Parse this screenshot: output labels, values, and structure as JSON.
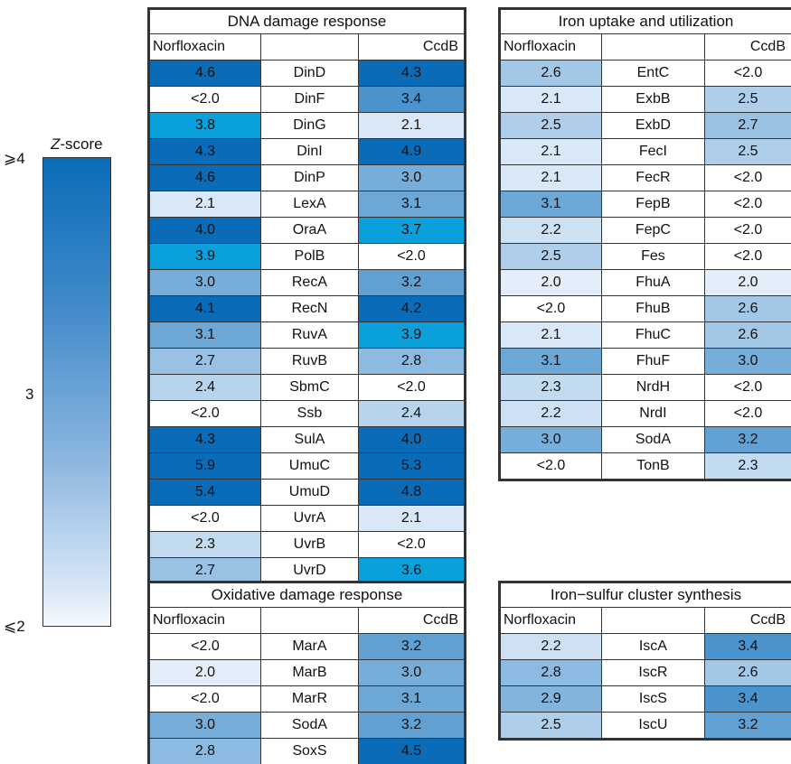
{
  "legend": {
    "title_var": "Z",
    "title_rest": "-score",
    "top_label": "⩾4",
    "mid_label": "3",
    "bottom_label": "⩽2"
  },
  "headers": {
    "left": "Norfloxacin",
    "right": "CcdB"
  },
  "tables": [
    {
      "id": "dna",
      "title": "DNA damage response",
      "rows": [
        [
          "4.6",
          "DinD",
          "4.3"
        ],
        [
          "<2.0",
          "DinF",
          "3.4"
        ],
        [
          "3.8",
          "DinG",
          "2.1"
        ],
        [
          "4.3",
          "DinI",
          "4.9"
        ],
        [
          "4.6",
          "DinP",
          "3.0"
        ],
        [
          "2.1",
          "LexA",
          "3.1"
        ],
        [
          "4.0",
          "OraA",
          "3.7"
        ],
        [
          "3.9",
          "PolB",
          "<2.0"
        ],
        [
          "3.0",
          "RecA",
          "3.2"
        ],
        [
          "4.1",
          "RecN",
          "4.2"
        ],
        [
          "3.1",
          "RuvA",
          "3.9"
        ],
        [
          "2.7",
          "RuvB",
          "2.8"
        ],
        [
          "2.4",
          "SbmC",
          "<2.0"
        ],
        [
          "<2.0",
          "Ssb",
          "2.4"
        ],
        [
          "4.3",
          "SulA",
          "4.0"
        ],
        [
          "5.9",
          "UmuC",
          "5.3"
        ],
        [
          "5.4",
          "UmuD",
          "4.8"
        ],
        [
          "<2.0",
          "UvrA",
          "2.1"
        ],
        [
          "2.3",
          "UvrB",
          "<2.0"
        ],
        [
          "2.7",
          "UvrD",
          "3.6"
        ]
      ]
    },
    {
      "id": "iron",
      "title": "Iron uptake and utilization",
      "rows": [
        [
          "2.6",
          "EntC",
          "<2.0"
        ],
        [
          "2.1",
          "ExbB",
          "2.5"
        ],
        [
          "2.5",
          "ExbD",
          "2.7"
        ],
        [
          "2.1",
          "FecI",
          "2.5"
        ],
        [
          "2.1",
          "FecR",
          "<2.0"
        ],
        [
          "3.1",
          "FepB",
          "<2.0"
        ],
        [
          "2.2",
          "FepC",
          "<2.0"
        ],
        [
          "2.5",
          "Fes",
          "<2.0"
        ],
        [
          "2.0",
          "FhuA",
          "2.0"
        ],
        [
          "<2.0",
          "FhuB",
          "2.6"
        ],
        [
          "2.1",
          "FhuC",
          "2.6"
        ],
        [
          "3.1",
          "FhuF",
          "3.0"
        ],
        [
          "2.3",
          "NrdH",
          "<2.0"
        ],
        [
          "2.2",
          "NrdI",
          "<2.0"
        ],
        [
          "3.0",
          "SodA",
          "3.2"
        ],
        [
          "<2.0",
          "TonB",
          "2.3"
        ]
      ]
    },
    {
      "id": "oxidative",
      "title": "Oxidative damage response",
      "rows": [
        [
          "<2.0",
          "MarA",
          "3.2"
        ],
        [
          "2.0",
          "MarB",
          "3.0"
        ],
        [
          "<2.0",
          "MarR",
          "3.1"
        ],
        [
          "3.0",
          "SodA",
          "3.2"
        ],
        [
          "2.8",
          "SoxS",
          "4.5"
        ]
      ]
    },
    {
      "id": "fes",
      "title": "Iron−sulfur cluster synthesis",
      "rows": [
        [
          "2.2",
          "IscA",
          "3.4"
        ],
        [
          "2.8",
          "IscR",
          "2.6"
        ],
        [
          "2.9",
          "IscS",
          "3.4"
        ],
        [
          "2.5",
          "IscU",
          "3.2"
        ]
      ]
    }
  ],
  "colors": {
    "max_blue": "#0a6cb8",
    "highlight_cyan": "#0aa0dc",
    "low_blue": "#dfeaf7",
    "border": "#333333"
  }
}
